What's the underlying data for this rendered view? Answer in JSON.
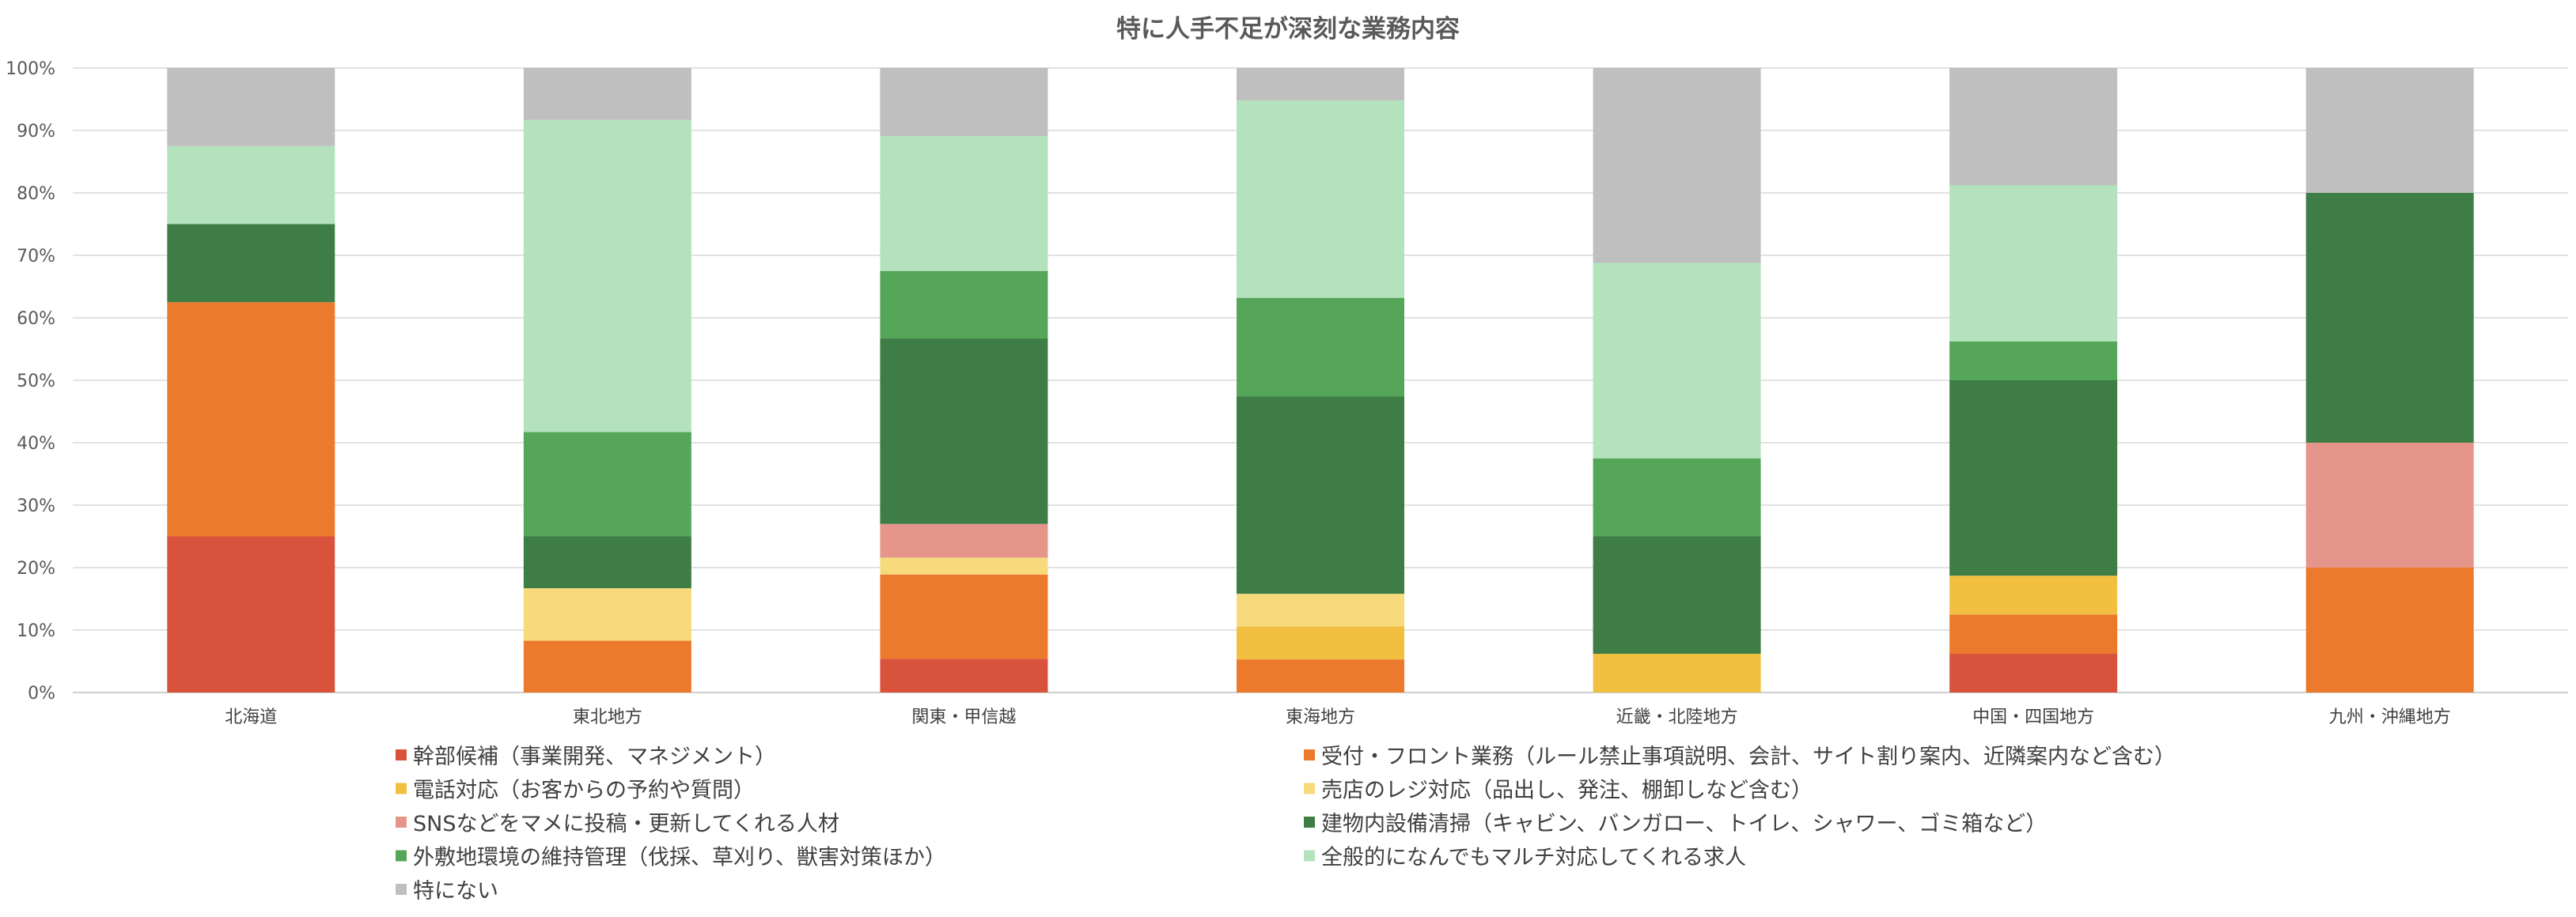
{
  "chart_data": {
    "type": "bar",
    "stacked": "percent",
    "title": "特に人手不足が深刻な業務内容",
    "xlabel": "",
    "ylabel": "",
    "ylim": [
      0,
      100
    ],
    "yticks": [
      "0%",
      "10%",
      "20%",
      "30%",
      "40%",
      "50%",
      "60%",
      "70%",
      "80%",
      "90%",
      "100%"
    ],
    "grid": true,
    "legend_position": "bottom",
    "categories": [
      "北海道",
      "東北地方",
      "関東・甲信越",
      "東海地方",
      "近畿・北陸地方",
      "中国・四国地方",
      "九州・沖縄地方"
    ],
    "series": [
      {
        "name": "幹部候補（事業開発、マネジメント）",
        "color": "#d9533c",
        "values": [
          25,
          0,
          5.4,
          0,
          0,
          6.2,
          0
        ]
      },
      {
        "name": "受付・フロント業務（ルール禁止事項説明、会計、サイト割り案内、近隣案内など含む）",
        "color": "#ec7a2c",
        "values": [
          37.5,
          8.3,
          13.5,
          5.3,
          0,
          6.3,
          20
        ]
      },
      {
        "name": "電話対応（お客からの予約や質問）",
        "color": "#f1c040",
        "values": [
          0,
          0,
          0,
          5.3,
          6.2,
          6.2,
          0
        ]
      },
      {
        "name": "売店のレジ対応（品出し、発注、棚卸しなど含む）",
        "color": "#f6da7b",
        "values": [
          0,
          8.4,
          2.7,
          5.2,
          0,
          0,
          0
        ]
      },
      {
        "name": "SNSなどをマメに投稿・更新してくれる人材",
        "color": "#e5958a",
        "values": [
          0,
          0,
          5.4,
          0,
          0,
          0,
          20
        ]
      },
      {
        "name": "建物内設備清掃（キャビン、バンガロー、トイレ、シャワー、ゴミ箱など）",
        "color": "#3e7d45",
        "values": [
          12.5,
          8.3,
          29.7,
          31.6,
          18.8,
          31.3,
          40
        ]
      },
      {
        "name": "外敷地環境の維持管理（伐採、草刈り、獣害対策ほか）",
        "color": "#56a65a",
        "values": [
          0,
          16.7,
          10.8,
          15.8,
          12.5,
          6.2,
          0
        ]
      },
      {
        "name": "全般的になんでもマルチ対応してくれる求人",
        "color": "#b3e2bd",
        "values": [
          12.5,
          50,
          21.6,
          31.6,
          31.3,
          25,
          0
        ]
      },
      {
        "name": "特にない",
        "color": "#bfbfbf",
        "values": [
          12.5,
          8.3,
          10.9,
          5.2,
          31.2,
          18.8,
          20
        ]
      }
    ]
  }
}
